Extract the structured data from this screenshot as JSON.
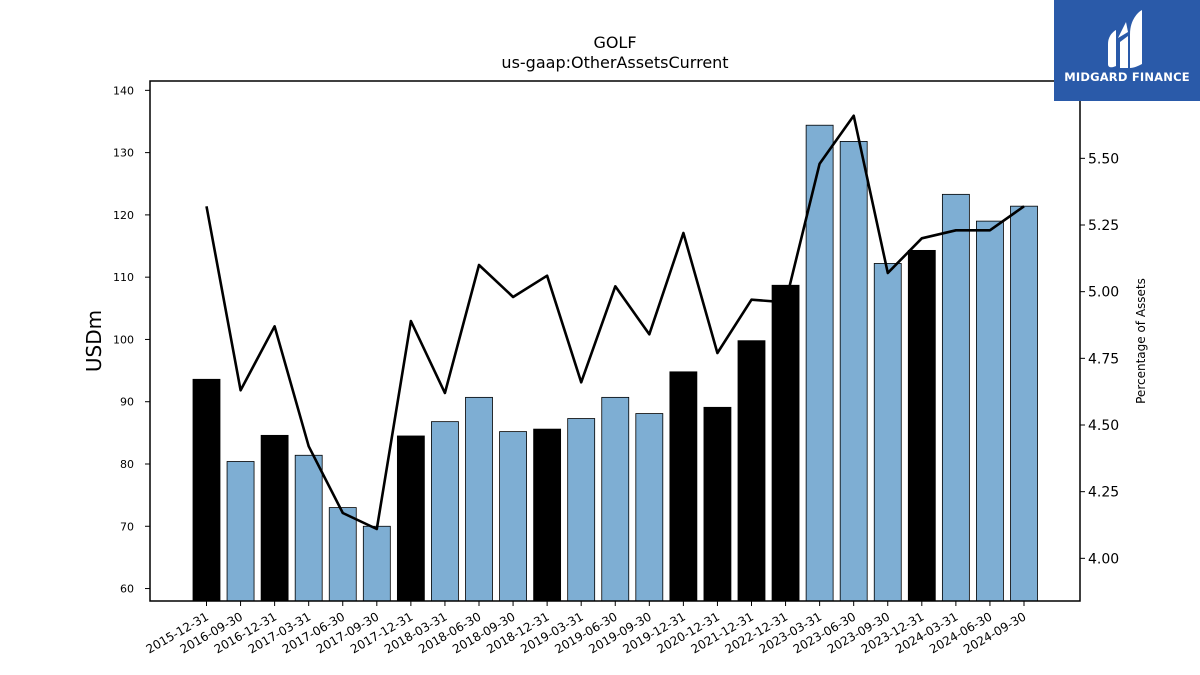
{
  "chart_data": {
    "type": "bar",
    "title": "GOLF",
    "subtitle": "us-gaap:OtherAssetsCurrent",
    "ylabel": "USDm",
    "y2label": "Percentage of Assets",
    "ylim": [
      58,
      141.5
    ],
    "y2lim": [
      3.84,
      5.79
    ],
    "yticks": [
      60,
      70,
      80,
      90,
      100,
      110,
      120,
      130,
      140
    ],
    "y2ticks": [
      "4.00",
      "4.25",
      "4.50",
      "4.75",
      "5.00",
      "5.25",
      "5.50"
    ],
    "categories": [
      "2015-12-31",
      "2016-09-30",
      "2016-12-31",
      "2017-03-31",
      "2017-06-30",
      "2017-09-30",
      "2017-12-31",
      "2018-03-31",
      "2018-06-30",
      "2018-09-30",
      "2018-12-31",
      "2019-03-31",
      "2019-06-30",
      "2019-09-30",
      "2019-12-31",
      "2020-12-31",
      "2021-12-31",
      "2022-12-31",
      "2023-03-31",
      "2023-06-30",
      "2023-09-30",
      "2023-12-31",
      "2024-03-31",
      "2024-06-30",
      "2024-09-30"
    ],
    "series": [
      {
        "kind": "bar",
        "values": [
          93.6,
          80.4,
          84.6,
          81.4,
          73.0,
          70.0,
          84.5,
          86.8,
          90.7,
          85.2,
          85.6,
          87.3,
          90.7,
          88.1,
          94.8,
          89.1,
          99.8,
          108.7,
          134.4,
          131.8,
          112.2,
          114.3,
          123.3,
          119.0,
          121.4
        ],
        "annual": [
          true,
          false,
          true,
          false,
          false,
          false,
          true,
          false,
          false,
          false,
          true,
          false,
          false,
          false,
          true,
          true,
          true,
          true,
          false,
          false,
          false,
          true,
          false,
          false,
          false
        ]
      },
      {
        "kind": "line",
        "axis": "right",
        "values": [
          5.32,
          4.63,
          4.87,
          4.42,
          4.17,
          4.11,
          4.89,
          4.62,
          5.1,
          4.98,
          5.06,
          4.66,
          5.02,
          4.84,
          5.22,
          4.77,
          4.97,
          4.96,
          5.48,
          5.66,
          5.07,
          5.2,
          5.23,
          5.23,
          5.32
        ]
      }
    ],
    "colors": {
      "annual_bar": "#000000",
      "quarter_bar": "#7eaed3",
      "line": "#000000"
    },
    "grid": false,
    "legend": "none"
  },
  "logo": {
    "text": "MIDGARD FINANCE",
    "bg": "#2a5aa9"
  }
}
